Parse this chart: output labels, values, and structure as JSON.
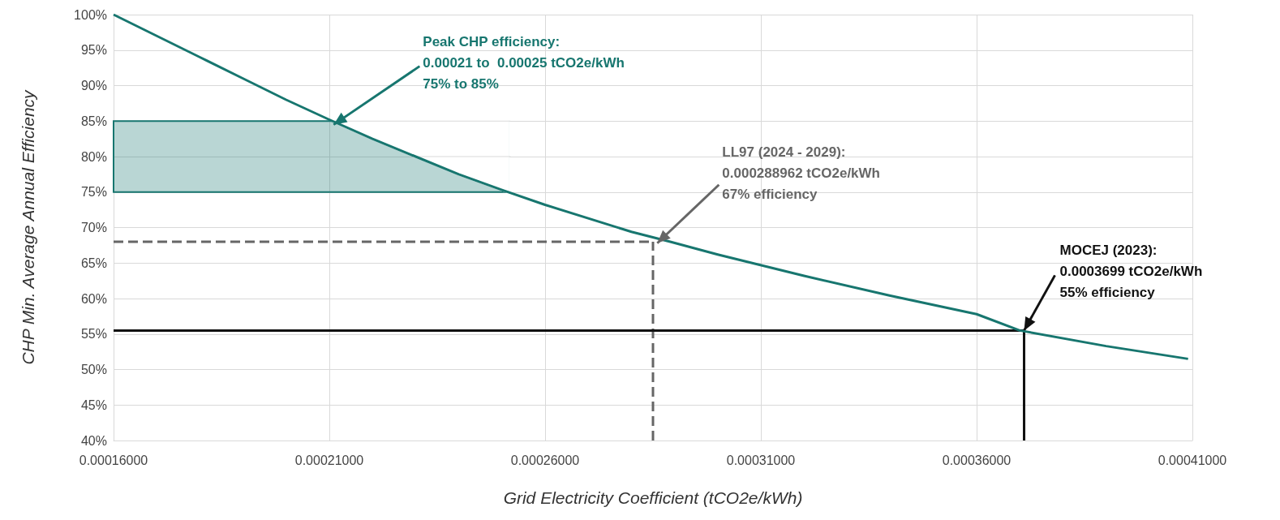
{
  "chart_data": {
    "type": "line",
    "xlabel": "Grid Electricity Coefficient (tCO2e/kWh)",
    "ylabel": "CHP Min. Average Annual Efficiency",
    "x": [
      0.00016,
      0.00017,
      0.00018,
      0.00019,
      0.0002,
      0.00021,
      0.00022,
      0.00023,
      0.00024,
      0.00025,
      0.00026,
      0.00028,
      0.000289,
      0.0003,
      0.00032,
      0.00034,
      0.00036,
      0.00037,
      0.00039,
      0.000409
    ],
    "series": [
      {
        "color": "#17766f",
        "values": [
          100,
          97,
          94,
          91,
          88,
          85.2,
          82.5,
          80,
          77.5,
          75.3,
          73.2,
          69.4,
          68,
          66.2,
          63.2,
          60.4,
          57.8,
          55.5,
          53.3,
          51.5
        ]
      }
    ],
    "xlim": [
      0.00016,
      0.00041
    ],
    "xticks": [
      {
        "value": 0.00016,
        "label": "0.00016000"
      },
      {
        "value": 0.00021,
        "label": "0.00021000"
      },
      {
        "value": 0.00026,
        "label": "0.00026000"
      },
      {
        "value": 0.00031,
        "label": "0.00031000"
      },
      {
        "value": 0.00036,
        "label": "0.00036000"
      },
      {
        "value": 0.00041,
        "label": "0.00041000"
      }
    ],
    "ylim": [
      40,
      100
    ],
    "yticks": [
      {
        "value": 40,
        "label": "40%"
      },
      {
        "value": 45,
        "label": "45%"
      },
      {
        "value": 50,
        "label": "50%"
      },
      {
        "value": 55,
        "label": "55%"
      },
      {
        "value": 60,
        "label": "60%"
      },
      {
        "value": 65,
        "label": "65%"
      },
      {
        "value": 70,
        "label": "70%"
      },
      {
        "value": 75,
        "label": "75%"
      },
      {
        "value": 80,
        "label": "80%"
      },
      {
        "value": 85,
        "label": "85%"
      },
      {
        "value": 90,
        "label": "90%"
      },
      {
        "value": 95,
        "label": "95%"
      },
      {
        "value": 100,
        "label": "100%"
      }
    ],
    "grid": true,
    "marker": "none",
    "line_style": "solid",
    "bands": [
      {
        "axis": "y",
        "from": 75,
        "to": 85,
        "color": "#17766f"
      }
    ],
    "ref_lines": [
      {
        "axis": "y",
        "value": 68,
        "color": "#666666",
        "line_style": "dashed"
      },
      {
        "axis": "x",
        "value": 0.000285,
        "color": "#666666",
        "line_style": "dashed"
      },
      {
        "axis": "y",
        "value": 55.5,
        "color": "#111111",
        "line_style": "solid"
      },
      {
        "axis": "x",
        "value": 0.000371,
        "color": "#111111",
        "line_style": "solid"
      }
    ],
    "annotations": [
      {
        "text": "Peak CHP efficiency:\n0.00021 to  0.00025 tCO2e/kWh\n75% to 85%",
        "x": 0.000211,
        "y": 84.5
      },
      {
        "text": "LL97 (2024 - 2029):\n0.000288962 tCO2e/kWh\n67% efficiency",
        "x": 0.000286,
        "y": 67.8
      },
      {
        "text": "MOCEJ (2023):\n0.0003699 tCO2e/kWh\n55% efficiency",
        "x": 0.000371,
        "y": 55.5
      }
    ]
  }
}
